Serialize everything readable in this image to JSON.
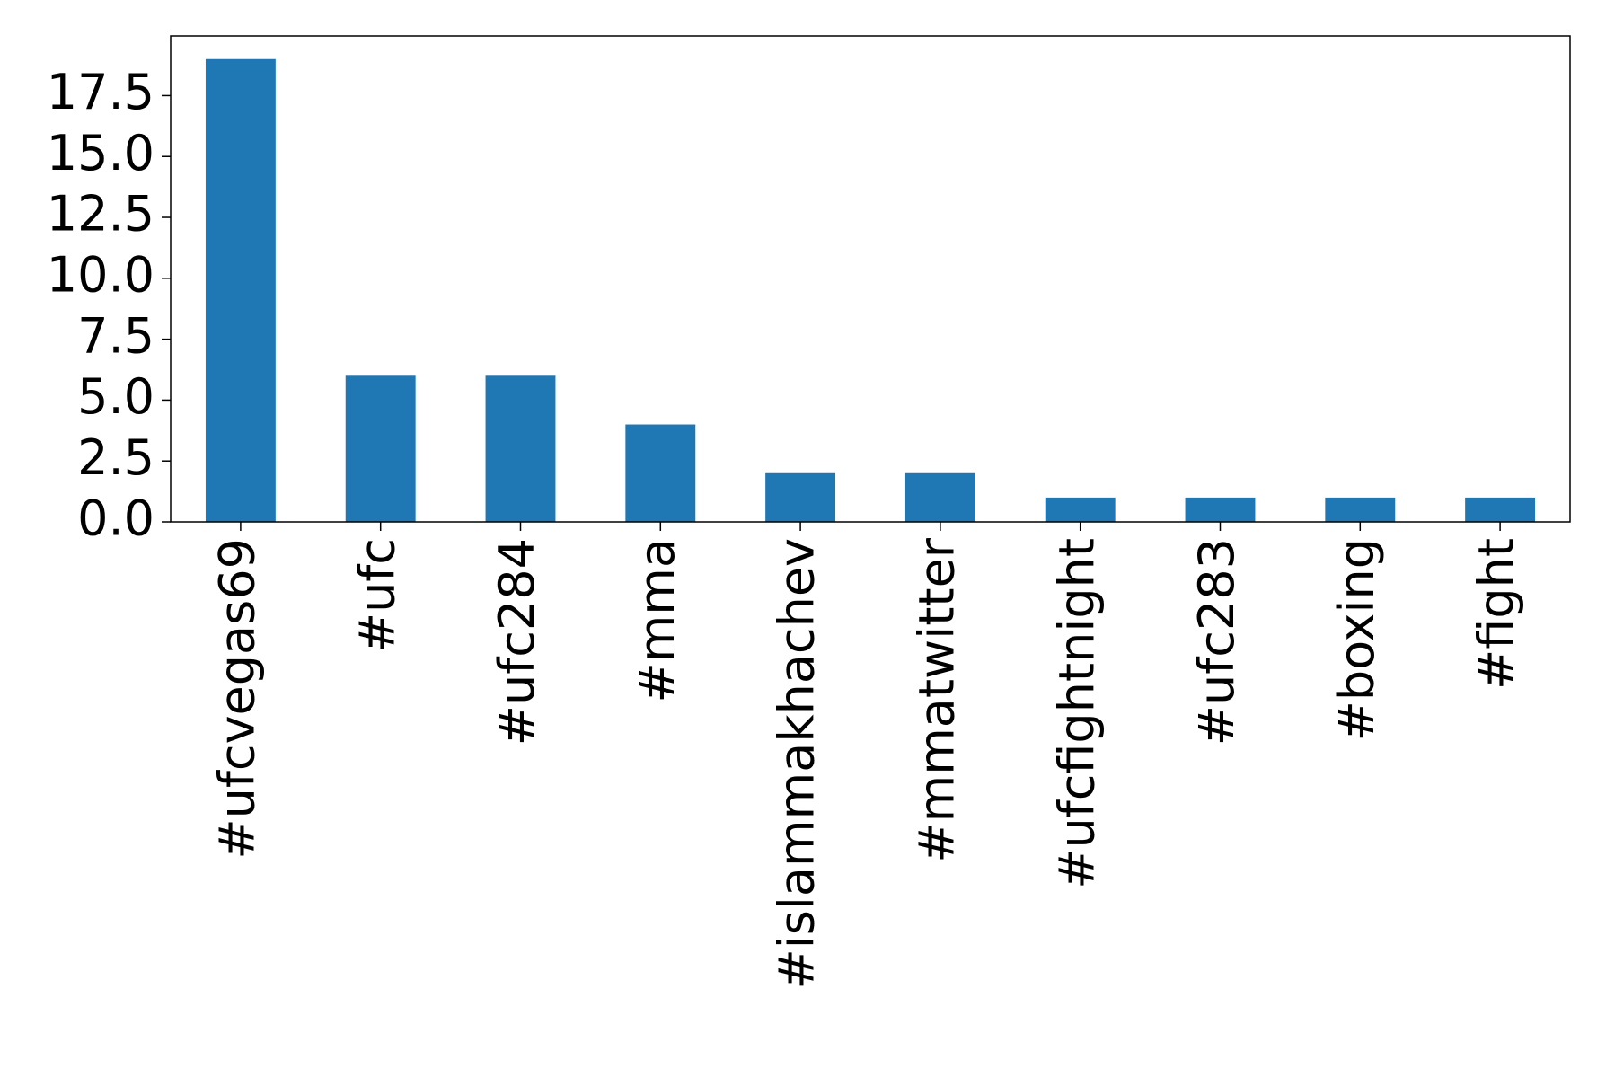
{
  "chart_data": {
    "type": "bar",
    "categories": [
      "#ufcvegas69",
      "#ufc",
      "#ufc284",
      "#mma",
      "#islammakhachev",
      "#mmatwitter",
      "#ufcfightnight",
      "#ufc283",
      "#boxing",
      "#fight"
    ],
    "values": [
      19,
      6,
      6,
      4,
      2,
      2,
      1,
      1,
      1,
      1
    ],
    "color": "#1f77b4",
    "ylim": [
      0,
      19.95
    ],
    "yticks": [
      {
        "value": 0,
        "label": "0.0"
      },
      2.5,
      {
        "value": 5,
        "label": "5.0"
      },
      7.5,
      {
        "value": 10,
        "label": "10.0"
      },
      12.5,
      {
        "value": 15,
        "label": "15.0"
      },
      17.5
    ],
    "grid": false
  }
}
